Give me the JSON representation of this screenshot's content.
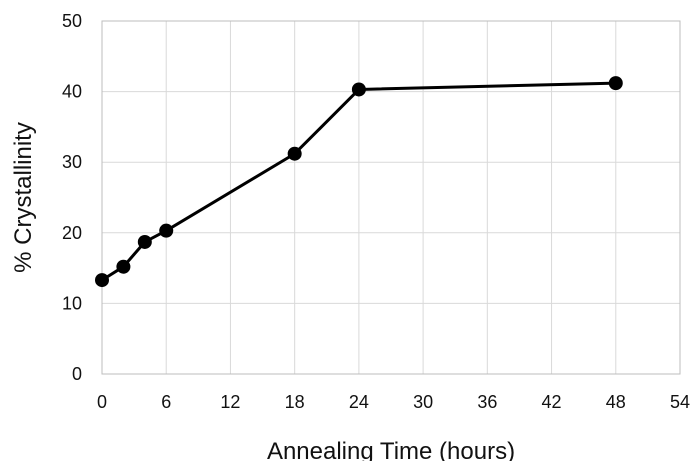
{
  "chart_data": {
    "type": "line",
    "title": "",
    "xlabel": "Annealing Time (hours)",
    "ylabel": "% Crystallinity",
    "xlim": [
      0,
      54
    ],
    "ylim": [
      0,
      50
    ],
    "x_ticks": [
      0,
      6,
      12,
      18,
      24,
      30,
      36,
      42,
      48,
      54
    ],
    "y_ticks": [
      0,
      10,
      20,
      30,
      40,
      50
    ],
    "x_tick_labels": [
      "0",
      "6",
      "12",
      "18",
      "24",
      "30",
      "36",
      "42",
      "48",
      "54"
    ],
    "y_tick_labels": [
      "0",
      "10",
      "20",
      "30",
      "40",
      "50"
    ],
    "grid": true,
    "legend": "none",
    "series": [
      {
        "x": [
          0,
          2,
          4,
          6,
          18,
          24,
          48
        ],
        "y": [
          13.3,
          15.2,
          18.7,
          20.3,
          31.2,
          40.3,
          41.2
        ],
        "color": "#000000",
        "marker": "circle"
      }
    ]
  }
}
